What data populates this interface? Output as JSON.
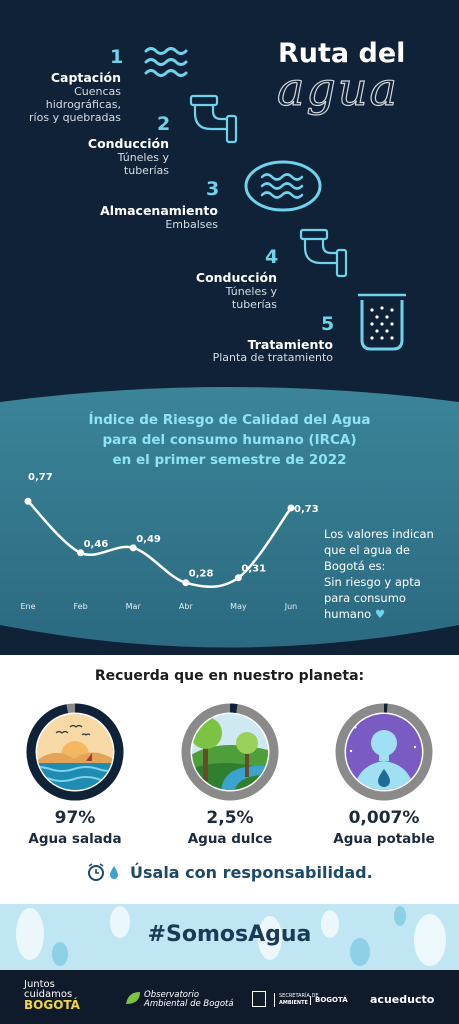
{
  "header": {
    "title_line1": "Ruta del",
    "title_line2": "agua"
  },
  "steps": [
    {
      "number": "1",
      "title": "Captación",
      "sub_lines": [
        "Cuencas",
        "hidrográficas,",
        "ríos y quebradas"
      ],
      "icon": "waves-icon"
    },
    {
      "number": "2",
      "title": "Conducción",
      "sub_lines": [
        "Túneles y",
        "tuberías"
      ],
      "icon": "pipe-icon"
    },
    {
      "number": "3",
      "title": "Almacenamiento",
      "sub_lines": [
        "Embalses"
      ],
      "icon": "reservoir-icon"
    },
    {
      "number": "4",
      "title": "Conducción",
      "sub_lines": [
        "Túneles y",
        "tuberías"
      ],
      "icon": "pipe-icon"
    },
    {
      "number": "5",
      "title": "Tratamiento",
      "sub_lines": [
        "Planta de tratamiento"
      ],
      "icon": "treatment-tank-icon"
    }
  ],
  "chart_data": {
    "type": "line",
    "title_lines": [
      "Índice de Riesgo de Calidad del Agua",
      "para del consumo humano (IRCA)",
      "en el primer semestre de 2022"
    ],
    "categories": [
      "Ene",
      "Feb",
      "Mar",
      "Abr",
      "May",
      "Jun"
    ],
    "values": [
      0.77,
      0.46,
      0.49,
      0.28,
      0.31,
      0.73
    ],
    "data_labels": [
      "0,77",
      "0,46",
      "0,49",
      "0,28",
      "0,31",
      "0,73"
    ],
    "ylim": [
      0.2,
      0.85
    ],
    "grid": false
  },
  "chart_note_lines": [
    "Los valores indican",
    "que el agua de",
    "Bogotá es:",
    "Sin riesgo y apta",
    "para consumo",
    "humano"
  ],
  "colors": {
    "dark_navy": "#0f2237",
    "teal": "#2e7088",
    "accent_cyan": "#6fd3ec",
    "ring_dark": "#0f2237",
    "ring_gray": "#8a8a8a"
  },
  "planet": {
    "heading": "Recuerda que en nuestro planeta:",
    "items": [
      {
        "percent": "97%",
        "label": "Agua salada",
        "share": 0.97,
        "icon": "sea-icon"
      },
      {
        "percent": "2,5%",
        "label": "Agua dulce",
        "share": 0.025,
        "icon": "river-forest-icon"
      },
      {
        "percent": "0,007%",
        "label": "Agua potable",
        "share": 7e-05,
        "icon": "person-drop-icon"
      }
    ],
    "slogan": "Úsala con responsabilidad."
  },
  "hashtag": "#SomosAgua",
  "footer": {
    "logo1_lines": [
      "Juntos",
      "cuidamos",
      "BOGOTÁ"
    ],
    "logo2_lines": [
      "Observatorio",
      "Ambiental de Bogotá"
    ],
    "logo3_lines": [
      "SECRETARÍA DE",
      "AMBIENTE"
    ],
    "logo4": "BOGOTÁ",
    "logo5": "acueducto"
  }
}
